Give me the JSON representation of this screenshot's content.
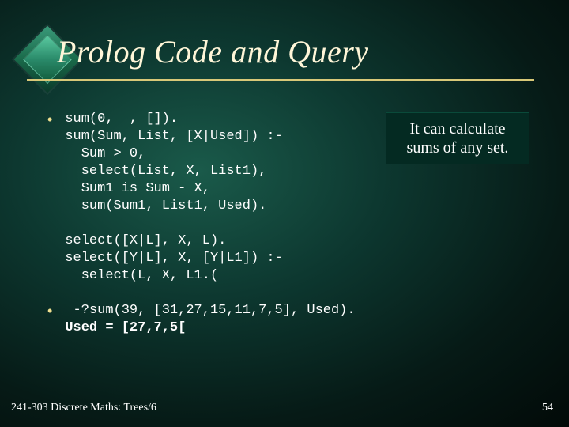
{
  "title": "Prolog Code and Query",
  "code_block_1": "sum(0, _, []).\nsum(Sum, List, [X|Used]) :-\n  Sum > 0,\n  select(List, X, List1),\n  Sum1 is Sum - X,\n  sum(Sum1, List1, Used).",
  "code_block_2": "select([X|L], X, L).\nselect([Y|L], X, [Y|L1]) :-\n  select(L, X, L1.(",
  "query_line": " -?sum(39, [31,27,15,11,7,5], Used).",
  "query_result": "Used = [27,7,5[",
  "callout_line1": "It can calculate",
  "callout_line2": "sums of any set.",
  "footer": "241-303 Discrete Maths: Trees/6",
  "slide_number": "54",
  "colors": {
    "title_color": "#fff6d8",
    "underline_color": "#d8c878",
    "bullet_color": "#f0e090",
    "text_color": "#ffffff",
    "callout_bg": "#042a22",
    "callout_border": "#0a4a3a"
  },
  "fonts": {
    "title_family": "Times New Roman italic",
    "title_size_pt": 30,
    "code_family": "Courier New",
    "code_size_pt": 13,
    "callout_family": "Times New Roman",
    "callout_size_pt": 15,
    "footer_size_pt": 10
  }
}
